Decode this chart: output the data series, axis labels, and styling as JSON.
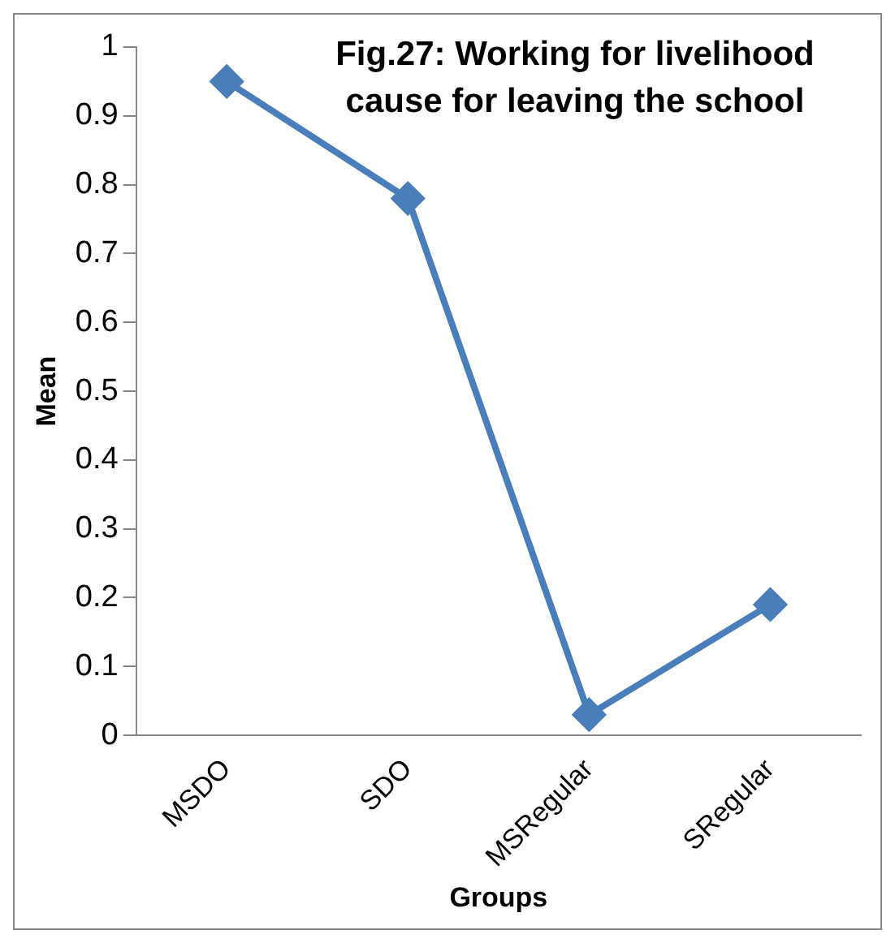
{
  "chart_data": {
    "type": "line",
    "title": "Fig.27: Working for livelihood cause for leaving the school",
    "xlabel": "Groups",
    "ylabel": "Mean",
    "categories": [
      "MSDO",
      "SDO",
      "MSRegular",
      "SRegular"
    ],
    "series": [
      {
        "color": "#4a7ebb",
        "values": [
          0.95,
          0.78,
          0.03,
          0.19
        ]
      }
    ],
    "ylim": [
      0,
      1
    ],
    "yticks": [
      0,
      0.1,
      0.2,
      0.3,
      0.4,
      0.5,
      0.6,
      0.7,
      0.8,
      0.9,
      1
    ],
    "grid": false,
    "legend": false,
    "marker": "diamond",
    "line_style": "solid"
  }
}
